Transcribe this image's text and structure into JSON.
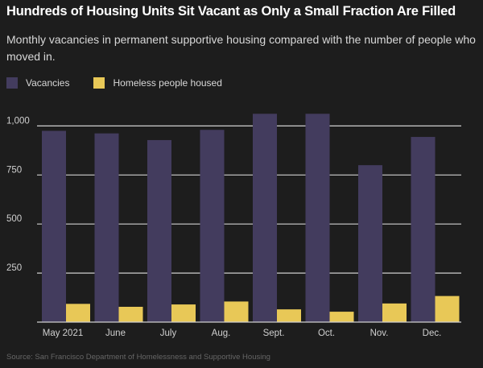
{
  "title": "Hundreds of Housing Units Sit Vacant as Only a Small Fraction Are Filled",
  "subtitle": "Monthly vacancies in permanent supportive housing compared with the number of people who moved in.",
  "source": "Source: San Francisco Department of Homelessness and Supportive Housing",
  "colors": {
    "background": "#1d1d1d",
    "vacancies": "#433c5e",
    "housed": "#e8c857",
    "grid": "#cfcfcf"
  },
  "chart_data": {
    "type": "bar",
    "categories": [
      "May 2021",
      "June",
      "July",
      "Aug.",
      "Sept.",
      "Oct.",
      "Nov.",
      "Dec."
    ],
    "series": [
      {
        "name": "Vacancies",
        "values": [
          975,
          962,
          928,
          980,
          1062,
          1062,
          800,
          944
        ]
      },
      {
        "name": "Homeless people housed",
        "values": [
          93,
          78,
          90,
          105,
          65,
          53,
          95,
          133
        ]
      }
    ],
    "yticks": [
      250,
      500,
      750,
      1000
    ],
    "ytick_labels": [
      "250",
      "500",
      "750",
      "1,000"
    ],
    "ylim": [
      0,
      1100
    ],
    "grid": true,
    "legend_position": "top-left"
  }
}
